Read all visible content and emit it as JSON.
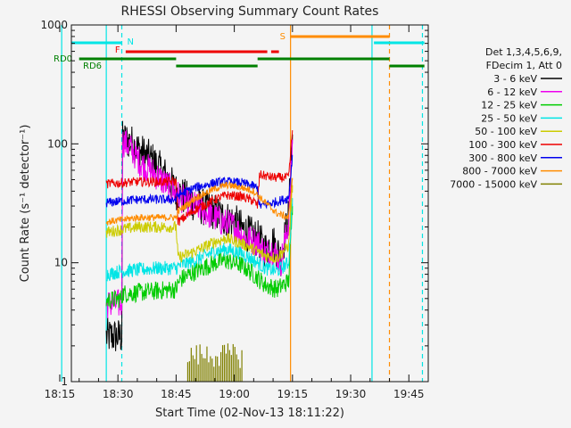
{
  "chart_data": {
    "type": "line",
    "title": "RHESSI Observing Summary Count Rates",
    "xlabel": "Start Time (02-Nov-13 18:11:22)",
    "ylabel": "Count Rate (s⁻¹ detector⁻¹)",
    "ylog": true,
    "ylim": [
      1,
      1000
    ],
    "xlim_minutes": [
      18.0,
      110.0
    ],
    "x_ticks": [
      {
        "label": "18:15",
        "min": 15
      },
      {
        "label": "18:30",
        "min": 30
      },
      {
        "label": "18:45",
        "min": 45
      },
      {
        "label": "19:00",
        "min": 60
      },
      {
        "label": "19:15",
        "min": 75
      },
      {
        "label": "19:30",
        "min": 90
      },
      {
        "label": "19:45",
        "min": 105
      }
    ],
    "y_ticks": [
      {
        "label": "1",
        "v": 1
      },
      {
        "label": "10",
        "v": 10
      },
      {
        "label": "100",
        "v": 100
      },
      {
        "label": "1000",
        "v": 1000
      }
    ],
    "legend": {
      "placement": "right",
      "header1": "Det 1,3,4,5,6,9,",
      "header2": "FDecim 1, Att 0",
      "entries": [
        {
          "label": "3 - 6 keV",
          "color": "#000000"
        },
        {
          "label": "6 - 12 keV",
          "color": "#ee00ee"
        },
        {
          "label": "12 - 25 keV",
          "color": "#00cc00"
        },
        {
          "label": "25 - 50 keV",
          "color": "#00e5e5"
        },
        {
          "label": "50 - 100 keV",
          "color": "#cccc00"
        },
        {
          "label": "100 - 300 keV",
          "color": "#ee0000"
        },
        {
          "label": "300 - 800 keV",
          "color": "#0000ee"
        },
        {
          "label": "800 - 7000 keV",
          "color": "#ff8c00"
        },
        {
          "label": "7000 - 15000 keV",
          "color": "#808000"
        }
      ]
    },
    "state_bars": [
      {
        "label": "N",
        "color": "#00e5e5",
        "segments": [
          [
            18.0,
            31.0
          ],
          [
            96.0,
            109.0
          ]
        ]
      },
      {
        "label": "F",
        "color": "#ee0000",
        "segments": [
          [
            32.0,
            68.5
          ],
          [
            69.5,
            71.5
          ]
        ]
      },
      {
        "label": "S",
        "color": "#ff8c00",
        "segments": [
          [
            74.5,
            100.0
          ]
        ]
      },
      {
        "label": "RD0",
        "color": "#008000",
        "segments": [
          [
            20.0,
            45.0
          ],
          [
            66.0,
            100.0
          ]
        ]
      },
      {
        "label": "RD6",
        "color": "#008000",
        "segments": [
          [
            45.0,
            66.0
          ],
          [
            100.0,
            109.0
          ]
        ]
      }
    ],
    "vlines": [
      {
        "min": 15.5,
        "color": "#00e5e5",
        "dash": false
      },
      {
        "min": 27.0,
        "color": "#00e5e5",
        "dash": false
      },
      {
        "min": 31.0,
        "color": "#00e5e5",
        "dash": true
      },
      {
        "min": 74.5,
        "color": "#ff8c00",
        "dash": false
      },
      {
        "min": 95.5,
        "color": "#00e5e5",
        "dash": false
      },
      {
        "min": 100.0,
        "color": "#ff8c00",
        "dash": true
      },
      {
        "min": 108.5,
        "color": "#00e5e5",
        "dash": true
      }
    ],
    "series": [
      {
        "name": "3 - 6 keV",
        "color": "#000000",
        "noise": 0.1,
        "spiky": true,
        "points": [
          [
            27,
            2.4
          ],
          [
            31,
            2.4
          ],
          [
            31.2,
            110
          ],
          [
            33,
            105
          ],
          [
            36,
            85
          ],
          [
            39,
            72
          ],
          [
            42,
            55
          ],
          [
            45,
            40
          ],
          [
            48,
            34
          ],
          [
            51,
            30
          ],
          [
            54,
            28
          ],
          [
            57,
            24
          ],
          [
            60,
            22
          ],
          [
            63,
            18
          ],
          [
            66,
            16
          ],
          [
            68,
            13
          ],
          [
            70,
            15
          ],
          [
            72,
            11
          ],
          [
            74,
            25
          ],
          [
            75,
            120
          ]
        ]
      },
      {
        "name": "6 - 12 keV",
        "color": "#ee00ee",
        "noise": 0.08,
        "spiky": true,
        "points": [
          [
            27,
            4.5
          ],
          [
            31,
            4.5
          ],
          [
            31.2,
            105
          ],
          [
            33,
            95
          ],
          [
            36,
            68
          ],
          [
            39,
            58
          ],
          [
            42,
            47
          ],
          [
            45,
            38
          ],
          [
            48,
            32
          ],
          [
            51,
            29
          ],
          [
            54,
            25
          ],
          [
            57,
            22
          ],
          [
            60,
            20
          ],
          [
            63,
            16
          ],
          [
            66,
            15
          ],
          [
            68,
            12
          ],
          [
            70,
            13
          ],
          [
            72,
            10
          ],
          [
            74,
            22
          ],
          [
            75,
            100
          ]
        ]
      },
      {
        "name": "12 - 25 keV",
        "color": "#00cc00",
        "noise": 0.08,
        "points": [
          [
            27,
            4.8
          ],
          [
            31,
            5.0
          ],
          [
            31.2,
            5.5
          ],
          [
            35,
            5.6
          ],
          [
            40,
            5.8
          ],
          [
            45,
            6.0
          ],
          [
            46,
            7.2
          ],
          [
            50,
            8.5
          ],
          [
            55,
            10.0
          ],
          [
            58,
            10.5
          ],
          [
            62,
            9.5
          ],
          [
            65,
            8.0
          ],
          [
            68,
            6.5
          ],
          [
            71,
            6.0
          ],
          [
            74,
            7.0
          ],
          [
            75,
            30
          ]
        ]
      },
      {
        "name": "25 - 50 keV",
        "color": "#00e5e5",
        "noise": 0.06,
        "points": [
          [
            27,
            8.0
          ],
          [
            31,
            8.5
          ],
          [
            35,
            8.7
          ],
          [
            40,
            9.0
          ],
          [
            45,
            9.0
          ],
          [
            46,
            9.5
          ],
          [
            50,
            10.5
          ],
          [
            55,
            12.5
          ],
          [
            58,
            13.0
          ],
          [
            62,
            12.0
          ],
          [
            65,
            10.5
          ],
          [
            68,
            9.0
          ],
          [
            71,
            8.5
          ],
          [
            74,
            10.0
          ],
          [
            75,
            35
          ]
        ]
      },
      {
        "name": "50 - 100 keV",
        "color": "#cccc00",
        "noise": 0.05,
        "points": [
          [
            27,
            18
          ],
          [
            31,
            19
          ],
          [
            35,
            20
          ],
          [
            40,
            20
          ],
          [
            45,
            20
          ],
          [
            45.5,
            11
          ],
          [
            50,
            12.5
          ],
          [
            55,
            15
          ],
          [
            58,
            16
          ],
          [
            62,
            14.5
          ],
          [
            65,
            13
          ],
          [
            68,
            11.5
          ],
          [
            71,
            11
          ],
          [
            74,
            14
          ],
          [
            75,
            45
          ]
        ]
      },
      {
        "name": "100 - 300 keV",
        "color": "#ee0000",
        "noise": 0.04,
        "points": [
          [
            27,
            46
          ],
          [
            31,
            47
          ],
          [
            35,
            48
          ],
          [
            40,
            48
          ],
          [
            45,
            48
          ],
          [
            45.5,
            22
          ],
          [
            50,
            28
          ],
          [
            55,
            34
          ],
          [
            58,
            37
          ],
          [
            62,
            36
          ],
          [
            65,
            33
          ],
          [
            66,
            30
          ],
          [
            66.5,
            55
          ],
          [
            70,
            52
          ],
          [
            74,
            52
          ],
          [
            75,
            130
          ]
        ]
      },
      {
        "name": "300 - 800 keV",
        "color": "#0000ee",
        "noise": 0.04,
        "points": [
          [
            27,
            32
          ],
          [
            31,
            33
          ],
          [
            35,
            34
          ],
          [
            40,
            34
          ],
          [
            45,
            34
          ],
          [
            45.5,
            37
          ],
          [
            50,
            43
          ],
          [
            55,
            47
          ],
          [
            58,
            48
          ],
          [
            62,
            47
          ],
          [
            65,
            44
          ],
          [
            66,
            42
          ],
          [
            66.5,
            30
          ],
          [
            70,
            32
          ],
          [
            74,
            35
          ],
          [
            75,
            80
          ]
        ]
      },
      {
        "name": "800 - 7000 keV",
        "color": "#ff8c00",
        "noise": 0.03,
        "points": [
          [
            27,
            22
          ],
          [
            31,
            23
          ],
          [
            35,
            24
          ],
          [
            40,
            24
          ],
          [
            45,
            24
          ],
          [
            45.5,
            27
          ],
          [
            50,
            35
          ],
          [
            55,
            42
          ],
          [
            58,
            45
          ],
          [
            62,
            43
          ],
          [
            65,
            40
          ],
          [
            68,
            32
          ],
          [
            71,
            26
          ],
          [
            74,
            24
          ],
          [
            75,
            50
          ]
        ]
      },
      {
        "name": "7000 - 15000 keV",
        "color": "#808000",
        "noise": 0.0,
        "spiky": true,
        "points": [
          [
            48,
            2.0
          ],
          [
            52,
            2.0
          ],
          [
            56,
            2.0
          ],
          [
            60,
            2.0
          ],
          [
            62,
            2.0
          ]
        ]
      }
    ]
  }
}
